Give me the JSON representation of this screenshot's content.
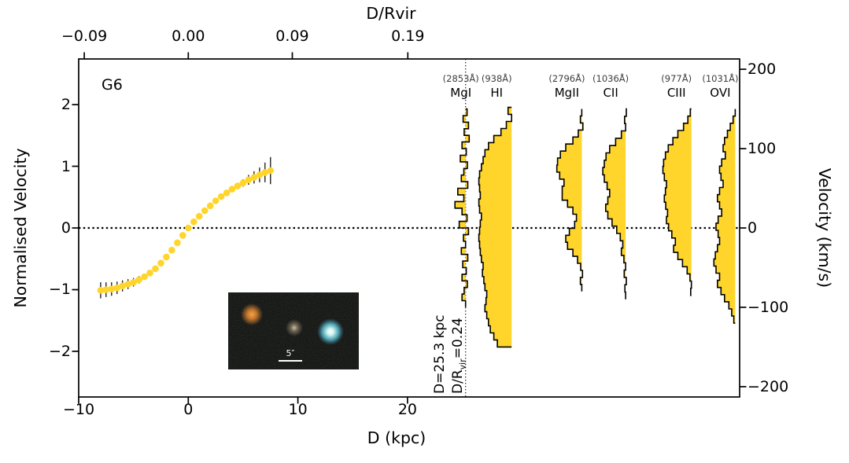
{
  "panel_label": "G6",
  "axes": {
    "top": {
      "title": "D/Rvir",
      "tick_labels": [
        "−0.09",
        "0.00",
        "0.09",
        "0.19"
      ]
    },
    "bottom": {
      "title": "D (kpc)",
      "tick_labels": [
        "−10",
        "0",
        "10",
        "20"
      ]
    },
    "left": {
      "title": "Normalised Velocity",
      "tick_labels": [
        "2",
        "1",
        "0",
        "−1",
        "−2"
      ]
    },
    "right": {
      "title": "Velocity (km/s)",
      "tick_labels": [
        "200",
        "100",
        "0",
        "−100",
        "−200"
      ]
    }
  },
  "annotation": {
    "d_label": "D=25.3 kpc",
    "rvir_prefix": "D/R",
    "rvir_sub": "vir",
    "rvir_suffix": "=0.24"
  },
  "inset": {
    "scalebar_label": "5″"
  },
  "chart_data": {
    "type": "line",
    "title": "G6",
    "xlabel": "D (kpc)",
    "xlabel_top": "D/Rvir",
    "ylabel_left": "Normalised Velocity",
    "ylabel_right": "Velocity (km/s)",
    "x_range_kpc": [
      -10,
      50.3
    ],
    "y_range_norm": [
      -2.74,
      2.74
    ],
    "y_range_kms": [
      -213,
      213
    ],
    "grid": false,
    "marker_color": "#ffd52b",
    "profile_fill": "#ffd52b",
    "ticks": {
      "bottom_kpc": [
        -10,
        0,
        10,
        20
      ],
      "top_rvir": [
        -0.09,
        0.0,
        0.09,
        0.19
      ],
      "left_norm": [
        2,
        1,
        0,
        -1,
        -2
      ],
      "right_kms": [
        200,
        100,
        0,
        -100,
        -200
      ]
    },
    "impact_parameter": {
      "D_kpc": 25.3,
      "D_over_Rvir": 0.24
    },
    "rotation_curve": {
      "D_kpc": [
        -8,
        -7.5,
        -7,
        -6.5,
        -6,
        -5.5,
        -5,
        -4.5,
        -4,
        -3.5,
        -3,
        -2.5,
        -2,
        -1.5,
        -1,
        -0.5,
        0,
        0.5,
        1,
        1.5,
        2,
        2.5,
        3,
        3.5,
        4,
        4.5,
        5,
        5.5,
        6,
        6.5,
        7,
        7.5
      ],
      "v_norm": [
        -1.01,
        -1.0,
        -0.99,
        -0.97,
        -0.94,
        -0.91,
        -0.88,
        -0.84,
        -0.79,
        -0.73,
        -0.66,
        -0.57,
        -0.47,
        -0.36,
        -0.24,
        -0.12,
        0.0,
        0.1,
        0.19,
        0.28,
        0.36,
        0.44,
        0.51,
        0.57,
        0.63,
        0.68,
        0.73,
        0.78,
        0.82,
        0.86,
        0.9,
        0.93
      ],
      "v_err": [
        0.13,
        0.12,
        0.11,
        0.1,
        0.09,
        0.08,
        0.07,
        0.06,
        0.05,
        0.04,
        0.04,
        0.03,
        0.03,
        0.02,
        0.02,
        0.02,
        0.02,
        0.02,
        0.02,
        0.02,
        0.03,
        0.03,
        0.03,
        0.04,
        0.04,
        0.05,
        0.06,
        0.08,
        0.1,
        0.12,
        0.16,
        0.22
      ]
    },
    "profile_width_kpc": 3.25,
    "absorption_profiles": [
      {
        "ion": "MgI",
        "wavelength": "(2853Å)",
        "baseline_kpc": 25.3,
        "v_range": [
          150,
          -100
        ],
        "flux": [
          1.04,
          0.93,
          1.08,
          0.96,
          1.1,
          0.9,
          1.02,
          0.85,
          1.05,
          0.95,
          0.88,
          1.06,
          0.78,
          0.95,
          0.7,
          0.9,
          1.04,
          0.82,
          1.08,
          0.94,
          1.0,
          0.88,
          1.06,
          0.92,
          1.02,
          0.9,
          1.05,
          0.96,
          0.9,
          1.0
        ]
      },
      {
        "ion": "HI",
        "wavelength": "(938Å)",
        "baseline_kpc": 29.5,
        "v_range": [
          152,
          -150
        ],
        "flux": [
          0.9,
          1.0,
          0.85,
          0.7,
          0.5,
          0.35,
          0.25,
          0.2,
          0.15,
          0.1,
          0.08,
          0.1,
          0.12,
          0.08,
          0.1,
          0.15,
          0.12,
          0.1,
          0.08,
          0.1,
          0.12,
          0.15,
          0.2,
          0.18,
          0.22,
          0.25,
          0.3,
          0.28,
          0.25,
          0.3,
          0.35,
          0.4,
          0.5,
          0.6
        ]
      },
      {
        "ion": "MgII",
        "wavelength": "(2796Å)",
        "baseline_kpc": 35.9,
        "v_range": [
          150,
          -80
        ],
        "flux": [
          1.0,
          0.96,
          1.03,
          0.9,
          0.75,
          0.55,
          0.4,
          0.32,
          0.3,
          0.38,
          0.5,
          0.45,
          0.45,
          0.6,
          0.75,
          0.85,
          0.8,
          0.65,
          0.55,
          0.6,
          0.75,
          0.88,
          0.97,
          1.02,
          0.96,
          1.0
        ]
      },
      {
        "ion": "CII",
        "wavelength": "(1036Å)",
        "baseline_kpc": 39.9,
        "v_range": [
          150,
          -90
        ],
        "flux": [
          1.02,
          0.97,
          1.0,
          0.88,
          0.72,
          0.55,
          0.45,
          0.4,
          0.36,
          0.4,
          0.48,
          0.55,
          0.5,
          0.44,
          0.5,
          0.62,
          0.75,
          0.85,
          0.92,
          0.88,
          0.95,
          1.0,
          0.96,
          1.02,
          0.98,
          1.0
        ]
      },
      {
        "ion": "CIII",
        "wavelength": "(977Å)",
        "baseline_kpc": 45.9,
        "v_range": [
          150,
          -85
        ],
        "flux": [
          0.97,
          0.9,
          0.78,
          0.62,
          0.48,
          0.35,
          0.27,
          0.22,
          0.2,
          0.24,
          0.3,
          0.27,
          0.24,
          0.28,
          0.33,
          0.3,
          0.36,
          0.45,
          0.55,
          0.5,
          0.62,
          0.75,
          0.88,
          0.96,
          1.0,
          0.98
        ]
      },
      {
        "ion": "OVI",
        "wavelength": "(1031Å)",
        "baseline_kpc": 49.9,
        "v_range": [
          150,
          -120
        ],
        "flux": [
          1.0,
          0.94,
          0.86,
          0.78,
          0.7,
          0.66,
          0.72,
          0.62,
          0.56,
          0.6,
          0.66,
          0.56,
          0.5,
          0.56,
          0.62,
          0.52,
          0.46,
          0.52,
          0.56,
          0.5,
          0.44,
          0.4,
          0.46,
          0.56,
          0.5,
          0.6,
          0.7,
          0.82,
          0.9,
          0.96
        ]
      }
    ]
  }
}
